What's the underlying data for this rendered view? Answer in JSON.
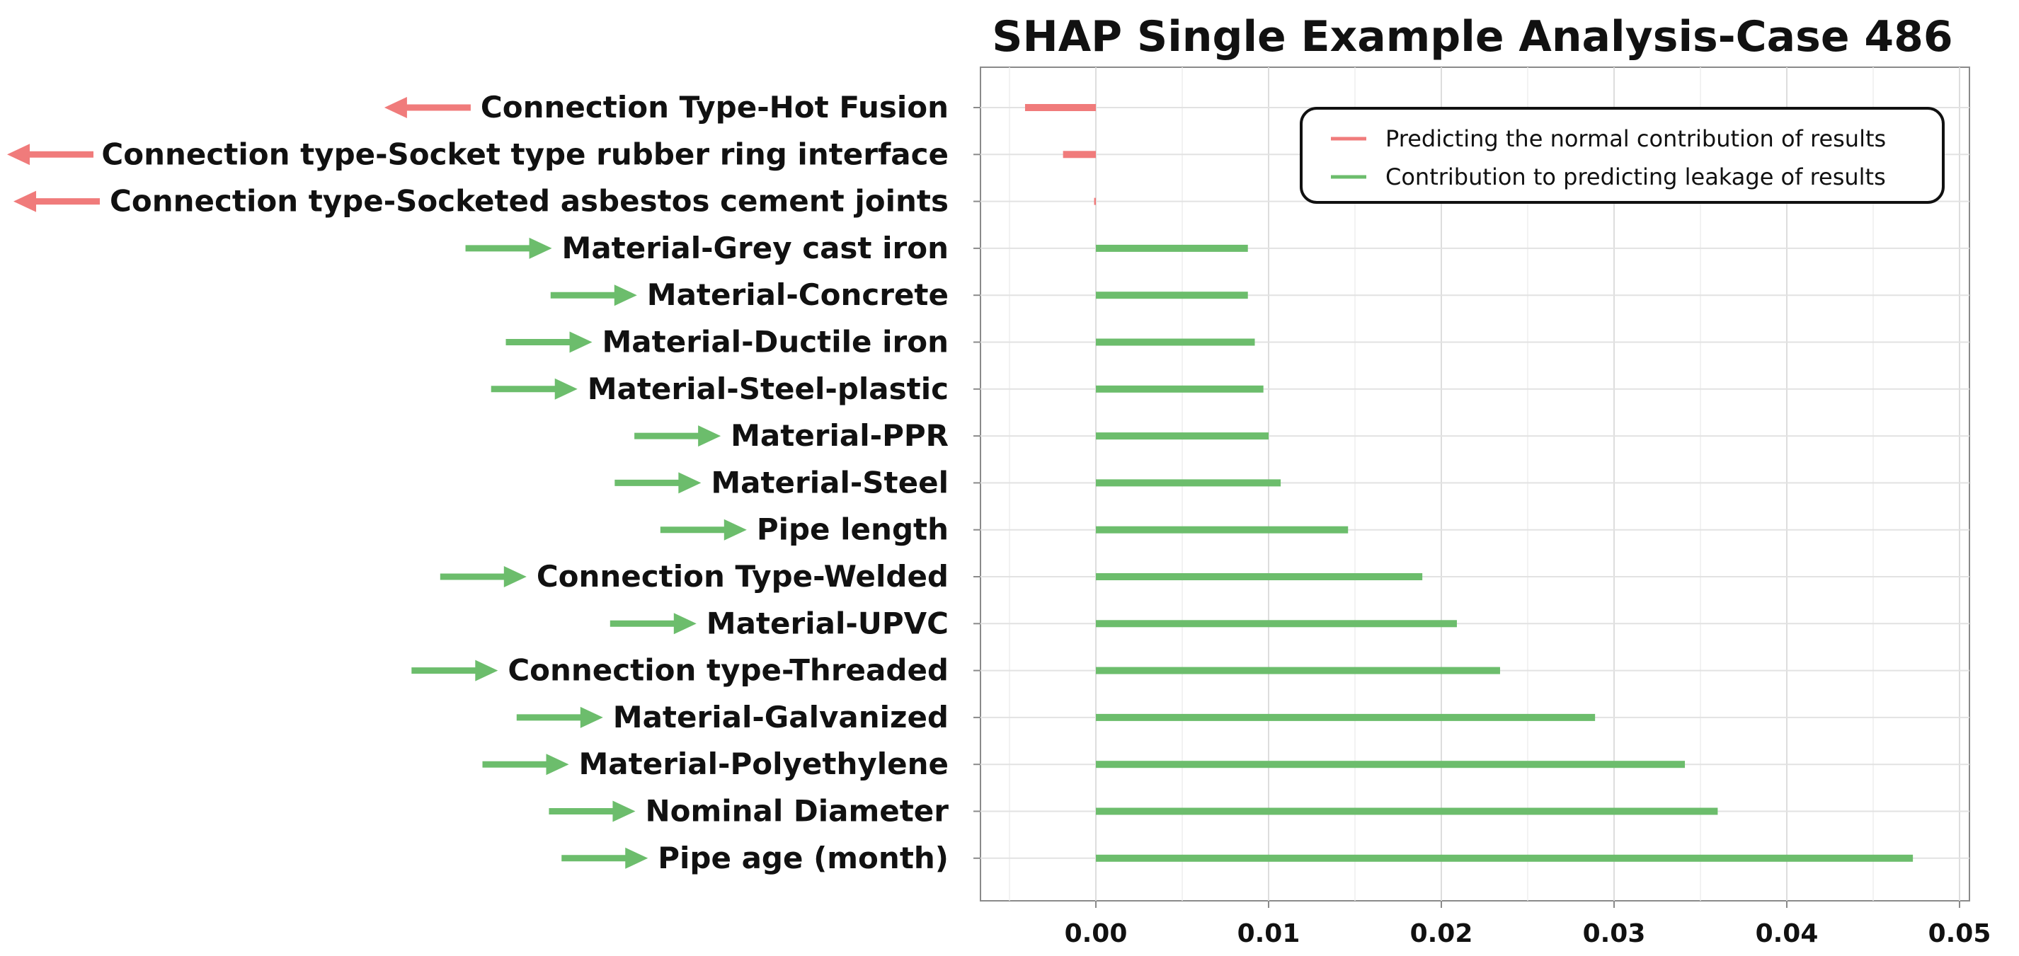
{
  "chart_data": {
    "type": "bar",
    "orientation": "horizontal",
    "title": "SHAP Single Example Analysis-Case 486",
    "xlabel": "",
    "ylabel": "",
    "xlim": [
      -0.0067,
      0.05
    ],
    "xticks": [
      0.0,
      0.01,
      0.02,
      0.03,
      0.04,
      0.05
    ],
    "xtick_labels": [
      "0.00",
      "0.01",
      "0.02",
      "0.03",
      "0.04",
      "0.05"
    ],
    "grid": true,
    "legend_position": "top-right",
    "colors": {
      "normal": "#f07b7b",
      "leakage": "#6cbd6c"
    },
    "series": [
      {
        "name": "Predicting the normal contribution of results",
        "key": "normal"
      },
      {
        "name": "Contribution to predicting leakage of results",
        "key": "leakage"
      }
    ],
    "bars": [
      {
        "label": "Connection Type-Hot Fusion",
        "value": -0.0041,
        "series": "normal"
      },
      {
        "label": "Connection type-Socket type rubber ring interface",
        "value": -0.0019,
        "series": "normal"
      },
      {
        "label": "Connection type-Socketed asbestos cement joints",
        "value": -0.0001,
        "series": "normal"
      },
      {
        "label": "Material-Grey cast iron",
        "value": 0.0088,
        "series": "leakage"
      },
      {
        "label": "Material-Concrete",
        "value": 0.0088,
        "series": "leakage"
      },
      {
        "label": "Material-Ductile iron",
        "value": 0.0092,
        "series": "leakage"
      },
      {
        "label": "Material-Steel-plastic",
        "value": 0.0097,
        "series": "leakage"
      },
      {
        "label": "Material-PPR",
        "value": 0.01,
        "series": "leakage"
      },
      {
        "label": "Material-Steel",
        "value": 0.0107,
        "series": "leakage"
      },
      {
        "label": "Pipe length",
        "value": 0.0146,
        "series": "leakage"
      },
      {
        "label": "Connection Type-Welded",
        "value": 0.0189,
        "series": "leakage"
      },
      {
        "label": "Material-UPVC",
        "value": 0.0209,
        "series": "leakage"
      },
      {
        "label": "Connection type-Threaded",
        "value": 0.0234,
        "series": "leakage"
      },
      {
        "label": "Material-Galvanized",
        "value": 0.0289,
        "series": "leakage"
      },
      {
        "label": "Material-Polyethylene",
        "value": 0.0341,
        "series": "leakage"
      },
      {
        "label": "Nominal Diameter",
        "value": 0.036,
        "series": "leakage"
      },
      {
        "label": "Pipe age (month)",
        "value": 0.0473,
        "series": "leakage"
      }
    ]
  }
}
